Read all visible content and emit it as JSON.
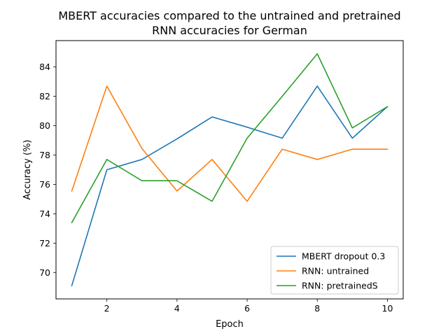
{
  "chart_data": {
    "type": "line",
    "title_line1": "MBERT accuracies compared to the untrained and pretrained",
    "title_line2": "RNN accuracies for German",
    "xlabel": "Epoch",
    "ylabel": "Accuracy (%)",
    "x": [
      1,
      2,
      3,
      4,
      5,
      6,
      7,
      8,
      9,
      10
    ],
    "xlim": [
      0.55,
      10.45
    ],
    "ylim": [
      68.2,
      85.8
    ],
    "xticks": [
      2,
      4,
      6,
      8,
      10
    ],
    "yticks": [
      70,
      72,
      74,
      76,
      78,
      80,
      82,
      84
    ],
    "grid": false,
    "legend_position": "lower-right",
    "series": [
      {
        "name": "MBERT dropout 0.3",
        "color": "#1f77b4",
        "values": [
          69.1,
          77.0,
          77.7,
          79.1,
          80.6,
          79.9,
          79.15,
          82.7,
          79.15,
          81.3
        ]
      },
      {
        "name": "RNN: untrained",
        "color": "#ff7f0e",
        "values": [
          75.55,
          82.7,
          78.45,
          75.55,
          77.7,
          74.85,
          78.4,
          77.7,
          78.4,
          78.4
        ]
      },
      {
        "name": "RNN: pretrainedS",
        "color": "#2ca02c",
        "values": [
          73.4,
          77.7,
          76.25,
          76.25,
          74.85,
          79.15,
          82.0,
          84.9,
          79.85,
          81.3
        ]
      }
    ]
  }
}
